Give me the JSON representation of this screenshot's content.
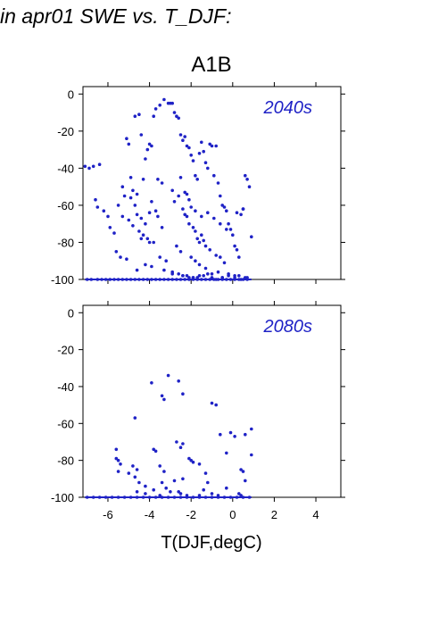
{
  "page": {
    "title": "in apr01 SWE vs. T_DJF:"
  },
  "figure": {
    "group_title": "A1B",
    "xlabel": "T(DJF,degC)",
    "xlim": [
      -7.2,
      5.2
    ],
    "ylim": [
      -100,
      4
    ],
    "xticks": [
      -6,
      -4,
      -2,
      0,
      2,
      4
    ],
    "yticks": [
      0,
      -20,
      -40,
      -60,
      -80,
      -100
    ],
    "point_color": "#1f22c6"
  },
  "chart_data": [
    {
      "type": "scatter",
      "panel_label": "2040s",
      "x": [
        -6.9,
        -6.7,
        -6.4,
        -7.1,
        -6.6,
        -6.5,
        -6.2,
        -5.6,
        -5.4,
        -5.1,
        -5.0,
        -4.9,
        -4.7,
        -4.5,
        -4.4,
        -4.3,
        -4.2,
        -4.1,
        -4.0,
        -3.9,
        -3.8,
        -3.7,
        -3.5,
        -3.3,
        -3.1,
        -3.0,
        -2.9,
        -2.8,
        -2.7,
        -2.6,
        -2.5,
        -2.4,
        -2.3,
        -2.2,
        -2.1,
        -2.0,
        -1.9,
        -1.8,
        -1.7,
        -1.6,
        -1.5,
        -1.4,
        -1.3,
        -1.2,
        -1.1,
        -1.0,
        -0.9,
        -0.8,
        -0.7,
        -0.6,
        -0.5,
        -0.4,
        -0.3,
        -0.2,
        -0.1,
        0.0,
        0.1,
        0.2,
        0.3,
        0.4,
        0.5,
        0.6,
        0.7,
        0.8,
        -5.9,
        -4.8,
        -4.6,
        -3.6,
        -3.4,
        -2.9,
        -2.5,
        -2.3,
        -2.2,
        -2.1,
        -2.0,
        -1.8,
        -1.5,
        -1.2,
        -0.9,
        -0.6,
        -0.3,
        0.2,
        0.5,
        -5.3,
        -5.2,
        -4.9,
        -4.7,
        -4.6,
        -4.4,
        -4.2,
        -4.0,
        -3.9,
        -3.7,
        -3.6,
        -3.4,
        -2.8,
        -2.6,
        -2.4,
        -2.3,
        -2.2,
        -2.1,
        -1.9,
        -1.8,
        -1.7,
        -1.6,
        -1.5,
        -1.4,
        -1.3,
        -1.1,
        -0.8,
        -0.6,
        -0.4,
        -5.5,
        -5.3,
        -5.0,
        -4.8,
        -4.5,
        -4.3,
        -4.1,
        -3.8,
        -2.7,
        -2.5,
        -2.0,
        -1.8,
        -1.6,
        -1.3,
        -0.7,
        -0.2,
        0.3,
        0.9,
        -5.1,
        -4.6,
        -4.2,
        -3.9,
        -3.3,
        -2.9,
        -2.6,
        -2.4,
        -2.2,
        -1.9,
        -1.7,
        -1.4,
        -1.0,
        -0.5,
        0.1,
        0.6,
        -6.0,
        -5.7,
        -4.4,
        -4.0,
        -3.5,
        -3.2,
        -2.9,
        -2.4,
        -2.1,
        -1.9,
        -1.6,
        -1.2,
        -1.0,
        -0.8,
        -0.5,
        -0.2,
        0.1,
        0.4,
        0.7,
        -7.0,
        -6.8,
        -6.5,
        -6.3,
        -6.1,
        -5.9,
        -5.7,
        -5.5,
        -5.3,
        -5.1,
        -4.9,
        -4.7,
        -4.5,
        -4.3,
        -4.1,
        -3.9,
        -3.7,
        -3.5,
        -3.3,
        -3.1,
        -2.9,
        -2.7,
        -2.5,
        -2.3,
        -2.1,
        -1.9,
        -1.7,
        -1.5,
        -1.3,
        -1.1,
        -0.9,
        -0.7,
        -0.5,
        -0.3,
        -0.1,
        0.1,
        0.3,
        0.5,
        0.7
      ],
      "y": [
        -40,
        -39,
        -38,
        -39,
        -57,
        -61,
        -63,
        -85,
        -88,
        -24,
        -27,
        -45,
        -12,
        -11,
        -22,
        -46,
        -35,
        -30,
        -27,
        -28,
        -12,
        -8,
        -6,
        -3,
        -5,
        -5,
        -5,
        -10,
        -12,
        -13,
        -22,
        -25,
        -23,
        -28,
        -29,
        -33,
        -36,
        -44,
        -46,
        -32,
        -26,
        -31,
        -37,
        -40,
        -27,
        -28,
        -44,
        -28,
        -48,
        -55,
        -60,
        -61,
        -63,
        -70,
        -73,
        -76,
        -82,
        -84,
        -88,
        -65,
        -62,
        -44,
        -46,
        -50,
        -72,
        -52,
        -54,
        -46,
        -48,
        -52,
        -45,
        -53,
        -54,
        -57,
        -61,
        -63,
        -66,
        -64,
        -67,
        -70,
        -73,
        -64,
        -62,
        -50,
        -55,
        -56,
        -60,
        -65,
        -67,
        -70,
        -64,
        -58,
        -63,
        -66,
        -72,
        -58,
        -55,
        -62,
        -65,
        -66,
        -70,
        -72,
        -74,
        -78,
        -80,
        -76,
        -79,
        -82,
        -84,
        -87,
        -88,
        -91,
        -60,
        -66,
        -68,
        -71,
        -74,
        -76,
        -78,
        -80,
        -82,
        -85,
        -88,
        -90,
        -92,
        -94,
        -96,
        -97,
        -98,
        -77,
        -89,
        -95,
        -92,
        -93,
        -95,
        -96,
        -97,
        -98,
        -98,
        -99,
        -99,
        -98,
        -97,
        -99,
        -98,
        -99,
        -66,
        -75,
        -78,
        -80,
        -88,
        -90,
        -97,
        -98,
        -99,
        -99,
        -98,
        -97,
        -99,
        -100,
        -99,
        -98,
        -99,
        -100,
        -99,
        -100,
        -100,
        -100,
        -100,
        -100,
        -100,
        -100,
        -100,
        -100,
        -100,
        -100,
        -100,
        -100,
        -100,
        -100,
        -100,
        -100,
        -100,
        -100,
        -100,
        -100,
        -100,
        -100,
        -100,
        -100,
        -100,
        -100,
        -100,
        -100,
        -100,
        -100,
        -100,
        -100,
        -100,
        -100,
        -100,
        -100,
        -100,
        -100
      ]
    },
    {
      "type": "scatter",
      "panel_label": "2080s",
      "x": [
        -3.9,
        -3.1,
        -2.6,
        -2.4,
        -3.4,
        -3.3,
        -1.0,
        -0.8,
        -4.7,
        -0.1,
        0.9,
        -0.6,
        0.1,
        0.6,
        -5.6,
        -5.5,
        -3.8,
        -3.7,
        -2.7,
        -2.5,
        -2.4,
        -2.1,
        -0.3,
        0.9,
        -5.6,
        -5.5,
        -4.8,
        -4.6,
        -3.5,
        -3.3,
        -2.0,
        -1.9,
        -1.6,
        -1.3,
        0.4,
        0.5,
        0.6,
        -5.4,
        -5.0,
        -4.7,
        -4.5,
        -4.2,
        -3.4,
        -3.2,
        -2.8,
        -2.6,
        -2.4,
        -1.4,
        -1.2,
        -0.3,
        0.3,
        -4.6,
        -4.2,
        -3.8,
        -3.5,
        -3.0,
        -2.5,
        -2.2,
        -1.6,
        -1.0,
        -0.7,
        0.4,
        -7.0,
        -6.7,
        -6.4,
        -6.1,
        -5.8,
        -5.5,
        -5.2,
        -4.9,
        -4.6,
        -4.3,
        -4.0,
        -3.7,
        -3.4,
        -3.1,
        -2.8,
        -2.5,
        -2.2,
        -1.9,
        -1.6,
        -1.3,
        -1.0,
        -0.7,
        -0.4,
        -0.1,
        0.2,
        0.5,
        0.8
      ],
      "y": [
        -38,
        -34,
        -37,
        -44,
        -45,
        -47,
        -49,
        -50,
        -57,
        -65,
        -63,
        -66,
        -67,
        -66,
        -74,
        -80,
        -74,
        -75,
        -70,
        -73,
        -71,
        -79,
        -76,
        -77,
        -79,
        -86,
        -83,
        -85,
        -83,
        -86,
        -80,
        -81,
        -82,
        -87,
        -85,
        -86,
        -91,
        -82,
        -87,
        -89,
        -92,
        -94,
        -92,
        -95,
        -91,
        -97,
        -90,
        -96,
        -92,
        -95,
        -98,
        -97,
        -98,
        -96,
        -99,
        -97,
        -98,
        -99,
        -99,
        -98,
        -99,
        -99,
        -100,
        -100,
        -100,
        -100,
        -100,
        -100,
        -100,
        -100,
        -100,
        -100,
        -100,
        -100,
        -100,
        -100,
        -100,
        -100,
        -100,
        -100,
        -100,
        -100,
        -100,
        -100,
        -100,
        -100,
        -100,
        -100,
        -100
      ]
    }
  ]
}
